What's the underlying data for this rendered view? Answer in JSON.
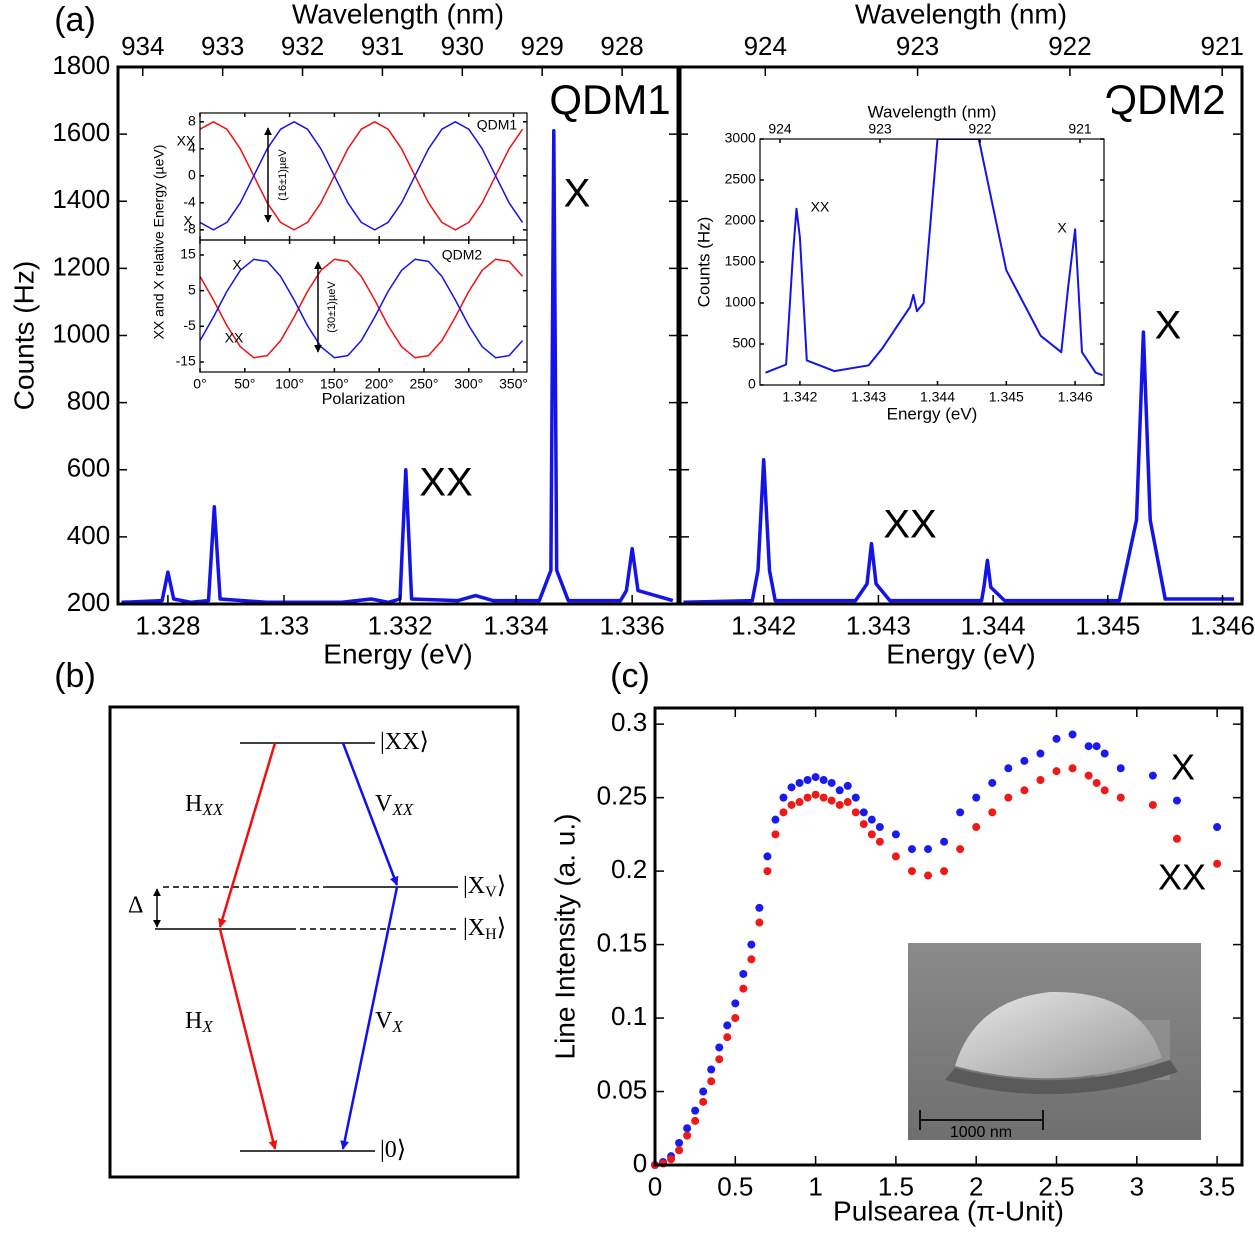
{
  "panel_labels": [
    "(a)",
    "(b)",
    "(c)"
  ],
  "chart_data": [
    {
      "type": "line",
      "xlabel": "Energy (eV)",
      "ylabel": "Counts (Hz)",
      "x2label": "Wavelength (nm)",
      "x": [
        1.3272,
        1.3279,
        1.328,
        1.3281,
        1.3284,
        1.3287,
        1.3288,
        1.3289,
        1.3297,
        1.331,
        1.3315,
        1.3318,
        1.332,
        1.3321,
        1.3322,
        1.333,
        1.3333,
        1.3336,
        1.3344,
        1.3346,
        1.33465,
        1.3347,
        1.3349,
        1.3358,
        1.3359,
        1.336,
        1.3361,
        1.3367
      ],
      "series": [
        {
          "color": "#1414e6",
          "values": [
            205,
            210,
            295,
            215,
            205,
            210,
            490,
            215,
            205,
            205,
            215,
            205,
            215,
            600,
            215,
            210,
            225,
            210,
            210,
            300,
            1610,
            300,
            210,
            210,
            240,
            365,
            240,
            210
          ]
        }
      ],
      "xlim": [
        1.32714,
        1.33679
      ],
      "xticks": [
        1.328,
        1.33,
        1.332,
        1.334,
        1.336
      ],
      "ylim": [
        200,
        1800
      ],
      "yticks": [
        200,
        400,
        600,
        800,
        1000,
        1200,
        1400,
        1600,
        1800
      ],
      "x2lim": [
        934.31,
        927.3
      ],
      "x2ticks": [
        934,
        933,
        932,
        931,
        930,
        929,
        928
      ],
      "annotations": [
        "QDM1",
        "XX",
        "X"
      ]
    },
    {
      "type": "line",
      "xlabel": "Energy (eV)",
      "x2label": "Wavelength (nm)",
      "x": [
        1.3413,
        1.3419,
        1.34195,
        1.342,
        1.34205,
        1.3421,
        1.3428,
        1.3429,
        1.34294,
        1.34298,
        1.3431,
        1.3439,
        1.34392,
        1.34395,
        1.34398,
        1.3441,
        1.3451,
        1.34525,
        1.34531,
        1.34537,
        1.3455,
        1.3461
      ],
      "series": [
        {
          "color": "#1414e6",
          "values": [
            205,
            210,
            300,
            630,
            300,
            210,
            210,
            260,
            380,
            260,
            210,
            210,
            250,
            330,
            250,
            210,
            210,
            450,
            1010,
            450,
            215,
            215
          ]
        }
      ],
      "xlim": [
        1.34127,
        1.34617
      ],
      "xticks": [
        1.342,
        1.343,
        1.344,
        1.345,
        1.346
      ],
      "ylim": [
        200,
        1800
      ],
      "yticks": [
        200,
        400,
        600,
        800,
        1000,
        1200,
        1400,
        1600,
        1800
      ],
      "yticklabels": false,
      "x2lim": [
        924.56,
        920.87
      ],
      "x2ticks": [
        924,
        923,
        922,
        921
      ],
      "annotations": [
        "QDM2",
        "XX",
        "X"
      ]
    },
    {
      "type": "line",
      "ylabel": "XX and X relative Energy (µeV)",
      "x": [
        0,
        15,
        30,
        45,
        60,
        75,
        90,
        105,
        120,
        135,
        150,
        165,
        180,
        195,
        210,
        225,
        240,
        255,
        270,
        285,
        300,
        315,
        330,
        345,
        360
      ],
      "series": [
        {
          "name": "XX",
          "color": "#ee1111",
          "values": [
            6.9,
            8,
            6.9,
            4,
            0,
            -4,
            -6.9,
            -8,
            -6.9,
            -4,
            0,
            4,
            6.9,
            8,
            6.9,
            4,
            0,
            -4,
            -6.9,
            -8,
            -6.9,
            -4,
            0,
            4,
            6.9
          ]
        },
        {
          "name": "X",
          "color": "#1414e6",
          "values": [
            -6.9,
            -8,
            -6.9,
            -4,
            0,
            4,
            6.9,
            8,
            6.9,
            4,
            0,
            -4,
            -6.9,
            -8,
            -6.9,
            -4,
            0,
            4,
            6.9,
            8,
            6.9,
            4,
            0,
            -4,
            -6.9
          ]
        }
      ],
      "xlim": [
        0,
        365
      ],
      "xticks": [
        0,
        50,
        100,
        150,
        200,
        250,
        300,
        350
      ],
      "xticklabels": false,
      "ylim": [
        -9.5,
        9.3
      ],
      "yticks": [
        8,
        4,
        0,
        -4,
        -8
      ],
      "annotations": [
        "QDM1",
        "(16±1)µeV"
      ]
    },
    {
      "type": "line",
      "xlabel": "Polarization",
      "x": [
        0,
        15,
        30,
        45,
        60,
        75,
        90,
        105,
        120,
        135,
        150,
        165,
        180,
        195,
        210,
        225,
        240,
        255,
        270,
        285,
        300,
        315,
        330,
        345,
        360
      ],
      "series": [
        {
          "name": "XX",
          "color": "#ee1111",
          "values": [
            9,
            2.4,
            -4.8,
            -10.7,
            -13.8,
            -13.2,
            -9,
            -2.4,
            4.8,
            10.7,
            13.8,
            13.2,
            9,
            2.4,
            -4.8,
            -10.7,
            -13.8,
            -13.2,
            -9,
            -2.4,
            4.8,
            10.7,
            13.8,
            13.2,
            9
          ]
        },
        {
          "name": "X",
          "color": "#1414e6",
          "values": [
            -9,
            -2.4,
            4.8,
            10.7,
            13.8,
            13.2,
            9,
            2.4,
            -4.8,
            -10.7,
            -13.8,
            -13.2,
            -9,
            -2.4,
            4.8,
            10.7,
            13.8,
            13.2,
            9,
            2.4,
            -4.8,
            -10.7,
            -13.8,
            -13.2,
            -9
          ]
        }
      ],
      "xlim": [
        0,
        365
      ],
      "xticks": [
        {
          "value": 0,
          "label": "0°"
        },
        {
          "value": 50,
          "label": "50°"
        },
        {
          "value": 100,
          "label": "100°"
        },
        {
          "value": 150,
          "label": "150°"
        },
        {
          "value": 200,
          "label": "200°"
        },
        {
          "value": 250,
          "label": "250°"
        },
        {
          "value": 300,
          "label": "300°"
        },
        {
          "value": 350,
          "label": "350°"
        }
      ],
      "ylim": [
        -17.8,
        19.2
      ],
      "yticks": [
        15,
        5,
        -5,
        -15
      ],
      "annotations": [
        "QDM2",
        "(30±1)µeV"
      ]
    },
    {
      "type": "line",
      "xlabel": "Energy (eV)",
      "ylabel": "Counts (Hz)",
      "x2label": "Wavelength (nm)",
      "x": [
        1.3415,
        1.3418,
        1.3419,
        1.34195,
        1.342,
        1.3421,
        1.3425,
        1.343,
        1.3432,
        1.3434,
        1.3436,
        1.34365,
        1.3437,
        1.3438,
        1.344,
        1.3442,
        1.3444,
        1.3446,
        1.3448,
        1.345,
        1.3455,
        1.3458,
        1.3459,
        1.346,
        1.3461,
        1.3463,
        1.3464
      ],
      "series": [
        {
          "color": "#1414e6",
          "values": [
            150,
            250,
            1600,
            2150,
            1800,
            300,
            170,
            240,
            450,
            700,
            950,
            1100,
            900,
            1000,
            3000,
            3000,
            3000,
            3000,
            2200,
            1400,
            600,
            400,
            1200,
            1900,
            400,
            150,
            120
          ]
        }
      ],
      "xlim": [
        1.34142,
        1.34642
      ],
      "xticks": [
        1.342,
        1.343,
        1.344,
        1.345,
        1.346
      ],
      "ylim": [
        0,
        3000
      ],
      "yticks": [
        0,
        500,
        1000,
        1500,
        2000,
        2500,
        3000
      ],
      "x2lim": [
        924.2,
        920.76
      ],
      "x2ticks": [
        924,
        923,
        922,
        921
      ],
      "annotations": [
        "XX",
        "X"
      ]
    },
    {
      "type": "scatter",
      "xlabel": "Pulsearea (π-Unit)",
      "ylabel": "Line Intensity (a. u.)",
      "x": [
        0,
        0.05,
        0.1,
        0.15,
        0.2,
        0.25,
        0.3,
        0.35,
        0.4,
        0.45,
        0.5,
        0.55,
        0.6,
        0.65,
        0.7,
        0.75,
        0.8,
        0.85,
        0.9,
        0.95,
        1.0,
        1.05,
        1.1,
        1.15,
        1.2,
        1.25,
        1.3,
        1.35,
        1.4,
        1.5,
        1.6,
        1.7,
        1.8,
        1.9,
        2.0,
        2.1,
        2.2,
        2.3,
        2.4,
        2.5,
        2.6,
        2.7,
        2.75,
        2.8,
        2.9,
        3.1,
        3.25,
        3.5
      ],
      "series": [
        {
          "name": "X",
          "color": "#1a1aee",
          "values": [
            0,
            0.002,
            0.006,
            0.015,
            0.025,
            0.037,
            0.05,
            0.065,
            0.08,
            0.095,
            0.11,
            0.13,
            0.15,
            0.175,
            0.21,
            0.235,
            0.25,
            0.257,
            0.26,
            0.262,
            0.264,
            0.262,
            0.26,
            0.255,
            0.258,
            0.25,
            0.24,
            0.235,
            0.23,
            0.225,
            0.215,
            0.215,
            0.22,
            0.24,
            0.25,
            0.26,
            0.27,
            0.275,
            0.28,
            0.29,
            0.293,
            0.285,
            0.285,
            0.28,
            0.27,
            0.265,
            0.248,
            0.23
          ]
        },
        {
          "name": "XX",
          "color": "#ee1a1a",
          "values": [
            0,
            0.001,
            0.004,
            0.01,
            0.02,
            0.03,
            0.043,
            0.057,
            0.072,
            0.087,
            0.1,
            0.12,
            0.14,
            0.165,
            0.2,
            0.225,
            0.24,
            0.245,
            0.247,
            0.25,
            0.252,
            0.25,
            0.248,
            0.245,
            0.247,
            0.24,
            0.232,
            0.225,
            0.22,
            0.21,
            0.2,
            0.197,
            0.2,
            0.215,
            0.23,
            0.24,
            0.25,
            0.255,
            0.262,
            0.268,
            0.27,
            0.265,
            0.26,
            0.255,
            0.25,
            0.245,
            0.222,
            0.205
          ]
        }
      ],
      "xlim": [
        0,
        3.655
      ],
      "xticks": [
        0,
        0.5,
        1,
        1.5,
        2,
        2.5,
        3,
        3.5
      ],
      "ylim": [
        0,
        0.311
      ],
      "yticks": [
        0,
        0.05,
        0.1,
        0.15,
        0.2,
        0.25,
        0.3
      ]
    }
  ],
  "diagram": {
    "levels": [
      {
        "text": "|XX⟩"
      },
      {
        "text": "|X",
        "sub": "V",
        "end": "⟩"
      },
      {
        "text": "|X",
        "sub": "H",
        "end": "⟩"
      },
      {
        "text": "|0⟩"
      }
    ],
    "transitions": [
      {
        "text": "H",
        "sub": "XX"
      },
      {
        "text": "V",
        "sub": "XX"
      },
      {
        "text": "H",
        "sub": "X"
      },
      {
        "text": "V",
        "sub": "X"
      }
    ],
    "splitting": "Δ"
  },
  "image": {
    "scale_label": "1000 nm"
  }
}
